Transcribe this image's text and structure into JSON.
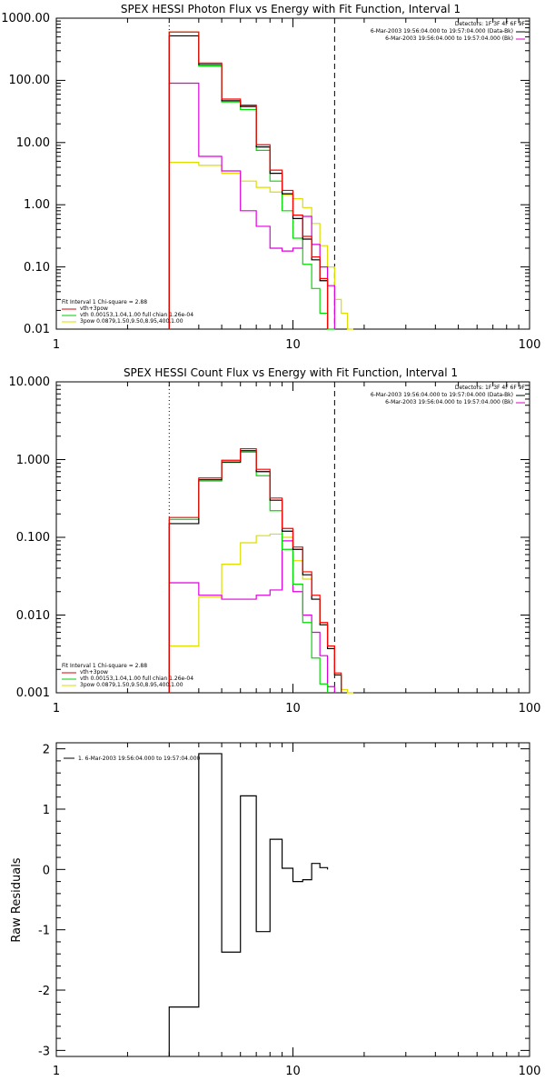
{
  "chart_data": [
    {
      "type": "line",
      "title": "SPEX HESSI Photon Flux vs Energy with Fit Function, Interval 1",
      "xscale": "log",
      "yscale": "log",
      "xlim": [
        1,
        100
      ],
      "ylim": [
        0.01,
        1000
      ],
      "xticks": [
        "1",
        "10",
        "100"
      ],
      "yticks": [
        "0.01",
        "0.10",
        "1.00",
        "10.00",
        "100.00",
        "1000.00"
      ],
      "vlines": [
        {
          "x": 3,
          "style": "dotted"
        },
        {
          "x": 15,
          "style": "dashed"
        }
      ],
      "header_lines": [
        "Detectors: 1F 3F 4F 6F 9F",
        "6-Mar-2003 19:56:04.000 to 19:57:04.000 (Data-Bk)",
        "6-Mar-2003 19:56:04.000 to 19:57:04.000 (Bk)"
      ],
      "fit_lines": [
        "Fit Interval 1   Chi-square = 2.88",
        "vth+3pow",
        "vth 0.00153,1.04,1.00  full chian 1.26e-04",
        "3pow 0.0879,1.50,9.50,8.95,400,1.00"
      ],
      "edges": [
        3.0,
        4.0,
        5.0,
        6.0,
        7.0,
        8.0,
        9.0,
        10.0,
        11.0,
        12.0,
        13.0,
        14.0,
        15.0,
        16.0,
        17.0,
        18.0
      ],
      "series": [
        {
          "name": "",
          "color": "#000000",
          "values": [
            520,
            180,
            47,
            38,
            8.5,
            3.2,
            1.5,
            0.6,
            0.28,
            0.13,
            0.06,
            null,
            null,
            null,
            null
          ]
        },
        {
          "name": "",
          "color": "#ff0000",
          "values": [
            600,
            190,
            50,
            40,
            9.2,
            3.6,
            1.7,
            0.68,
            0.31,
            0.145,
            0.065,
            null,
            null,
            null,
            null
          ]
        },
        {
          "name": "",
          "color": "#00dd00",
          "values": [
            600,
            170,
            45,
            34,
            7.5,
            2.4,
            0.8,
            0.29,
            0.11,
            0.045,
            0.018,
            0.0085,
            null,
            null,
            null
          ]
        },
        {
          "name": "",
          "color": "#dd00dd",
          "values": [
            90,
            6,
            3.5,
            0.8,
            0.45,
            0.2,
            0.18,
            0.2,
            0.65,
            0.23,
            0.1,
            0.05,
            null,
            null,
            null
          ]
        },
        {
          "name": "",
          "color": "#dddd00",
          "values": [
            4.8,
            4.3,
            3.2,
            2.4,
            1.9,
            1.6,
            1.45,
            1.25,
            0.9,
            0.5,
            0.22,
            0.1,
            0.03,
            0.018,
            0.009
          ]
        }
      ],
      "legend_colors": [
        "#000000",
        "#ff0000",
        "#dd00dd"
      ]
    },
    {
      "type": "line",
      "title": "SPEX HESSI Count Flux vs Energy with Fit Function, Interval 1",
      "xscale": "log",
      "yscale": "log",
      "xlim": [
        1,
        100
      ],
      "ylim": [
        0.001,
        10
      ],
      "xticks": [
        "1",
        "10",
        "100"
      ],
      "yticks": [
        "0.001",
        "0.010",
        "0.100",
        "1.000",
        "10.000"
      ],
      "vlines": [
        {
          "x": 3,
          "style": "dotted"
        },
        {
          "x": 15,
          "style": "dashed"
        }
      ],
      "header_lines": [
        "Detectors: 1F 3F 4F 6F 9F",
        "6-Mar-2003 19:56:04.000 to 19:57:04.000 (Data-Bk)",
        "6-Mar-2003 19:56:04.000 to 19:57:04.000 (Bk)"
      ],
      "fit_lines": [
        "Fit Interval 1   Chi-square = 2.88",
        "vth+3pow",
        "vth 0.00153,1.04,1.00  full chian 1.26e-04",
        "3pow 0.0879,1.50,9.50,8.95,400,1.00"
      ],
      "edges": [
        3.0,
        4.0,
        5.0,
        6.0,
        7.0,
        8.0,
        9.0,
        10.0,
        11.0,
        12.0,
        13.0,
        14.0,
        15.0,
        16.0,
        17.0,
        18.0,
        19.0
      ],
      "series": [
        {
          "name": "",
          "color": "#000000",
          "values": [
            0.15,
            0.55,
            0.93,
            1.3,
            0.7,
            0.3,
            0.12,
            0.07,
            0.033,
            0.016,
            0.0075,
            0.0037,
            0.0017,
            null,
            null,
            null
          ]
        },
        {
          "name": "",
          "color": "#ff0000",
          "values": [
            0.18,
            0.58,
            0.98,
            1.38,
            0.75,
            0.32,
            0.13,
            0.075,
            0.036,
            0.018,
            0.008,
            0.004,
            0.0018,
            null,
            null,
            null
          ]
        },
        {
          "name": "",
          "color": "#00dd00",
          "values": [
            0.17,
            0.53,
            0.92,
            1.25,
            0.62,
            0.22,
            0.07,
            0.025,
            0.008,
            0.0028,
            0.0013,
            null,
            null,
            null,
            null,
            null
          ]
        },
        {
          "name": "",
          "color": "#dd00dd",
          "values": [
            0.026,
            0.018,
            0.016,
            0.016,
            0.018,
            0.021,
            0.09,
            0.02,
            0.01,
            0.006,
            0.003,
            0.0012,
            null,
            null,
            null,
            null
          ]
        },
        {
          "name": "",
          "color": "#dddd00",
          "values": [
            0.004,
            0.017,
            0.045,
            0.085,
            0.105,
            0.11,
            0.1,
            0.05,
            0.029,
            0.016,
            0.0075,
            0.0037,
            0.0017,
            0.0011,
            0.0009,
            null
          ]
        }
      ],
      "legend_colors": [
        "#000000",
        "#ff0000",
        "#dd00dd"
      ]
    },
    {
      "type": "line",
      "title": "",
      "xscale": "log",
      "yscale": "linear",
      "xlim": [
        1,
        100
      ],
      "ylim": [
        -3.1,
        2.1
      ],
      "xticks": [
        "1",
        "10",
        "100"
      ],
      "yticks": [
        2,
        1,
        0,
        -1,
        -2,
        -3
      ],
      "ylabel": "Raw Residuals",
      "legend_lines": [
        "1. 6-Mar-2003 19:56:04.000 to 19:57:04.000"
      ],
      "edges": [
        3.0,
        4.0,
        5.0,
        6.0,
        7.0,
        8.0,
        9.0,
        10.0,
        11.0,
        12.0,
        13.0,
        14.0,
        15.0
      ],
      "series": [
        {
          "name": "",
          "color": "#000000",
          "values": [
            -2.28,
            1.92,
            -1.37,
            1.22,
            -1.03,
            0.5,
            0.02,
            -0.2,
            -0.17,
            0.1,
            0.03,
            null
          ]
        }
      ]
    }
  ]
}
